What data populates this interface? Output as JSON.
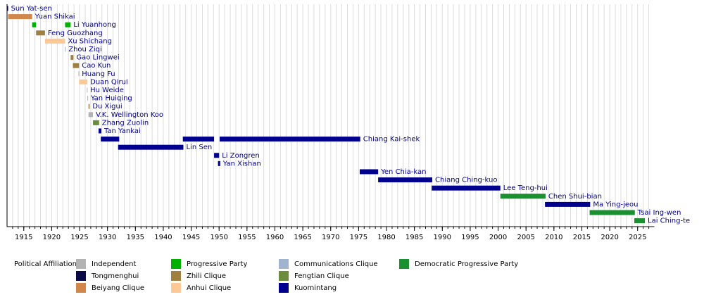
{
  "chart_data": {
    "type": "timeline",
    "xlim": [
      1912,
      2028
    ],
    "xticks": [
      1915,
      1920,
      1925,
      1930,
      1935,
      1940,
      1945,
      1950,
      1955,
      1960,
      1965,
      1970,
      1975,
      1980,
      1985,
      1990,
      1995,
      2000,
      2005,
      2010,
      2015,
      2020,
      2025
    ],
    "xminorticks": [
      1913,
      1914,
      1915,
      1916,
      1917,
      1918,
      1919,
      1920,
      1921,
      1922,
      1923,
      1924,
      1925,
      1926,
      1927,
      1928,
      1929,
      1930,
      1931,
      1932,
      1933,
      1934,
      1935,
      1936,
      1937,
      1938,
      1939,
      1940,
      1941,
      1942,
      1943,
      1944,
      1945,
      1946,
      1947,
      1948,
      1949,
      1950,
      1951,
      1952,
      1953,
      1954,
      1955,
      1956,
      1957,
      1958,
      1959,
      1960,
      1961,
      1962,
      1963,
      1964,
      1965,
      1966,
      1967,
      1968,
      1969,
      1970,
      1971,
      1972,
      1973,
      1974,
      1975,
      1976,
      1977,
      1978,
      1979,
      1980,
      1981,
      1982,
      1983,
      1984,
      1985,
      1986,
      1987,
      1988,
      1989,
      1990,
      1991,
      1992,
      1993,
      1994,
      1995,
      1996,
      1997,
      1998,
      1999,
      2000,
      2001,
      2002,
      2003,
      2004,
      2005,
      2006,
      2007,
      2008,
      2009,
      2010,
      2011,
      2012,
      2013,
      2014,
      2015,
      2016,
      2017,
      2018,
      2019,
      2020,
      2021,
      2022,
      2023,
      2024,
      2025,
      2026,
      2027
    ],
    "grid": true,
    "rows": [
      {
        "name": "Sun Yat-sen",
        "segments": [
          {
            "start": 1912.0,
            "end": 1912.2,
            "color": "#0a0a45"
          }
        ]
      },
      {
        "name": "Yuan Shikai",
        "segments": [
          {
            "start": 1912.2,
            "end": 1916.5,
            "color": "#d2874a"
          }
        ]
      },
      {
        "name": "Li Yuanhong",
        "segments": [
          {
            "start": 1916.5,
            "end": 1917.2,
            "color": "#00b000"
          },
          {
            "start": 1922.4,
            "end": 1923.4,
            "color": "#00b000"
          }
        ]
      },
      {
        "name": "Feng Guozhang",
        "segments": [
          {
            "start": 1917.2,
            "end": 1918.8,
            "color": "#a08040"
          }
        ]
      },
      {
        "name": "Xu Shichang",
        "segments": [
          {
            "start": 1918.8,
            "end": 1922.4,
            "color": "#fcc896"
          }
        ]
      },
      {
        "name": "Zhou Ziqi",
        "segments": [
          {
            "start": 1922.4,
            "end": 1922.5,
            "color": "#a0b4d0"
          }
        ]
      },
      {
        "name": "Gao Lingwei",
        "segments": [
          {
            "start": 1923.4,
            "end": 1923.9,
            "color": "#a08040"
          }
        ]
      },
      {
        "name": "Cao Kun",
        "segments": [
          {
            "start": 1923.8,
            "end": 1924.9,
            "color": "#a08040"
          }
        ]
      },
      {
        "name": "Huang Fu",
        "segments": [
          {
            "start": 1924.8,
            "end": 1924.9,
            "color": "#b3b3b3"
          }
        ]
      },
      {
        "name": "Duan Qirui",
        "segments": [
          {
            "start": 1924.9,
            "end": 1926.4,
            "color": "#fcc896"
          }
        ]
      },
      {
        "name": "Hu Weide",
        "segments": [
          {
            "start": 1926.3,
            "end": 1926.4,
            "color": "#b3b3b3"
          }
        ]
      },
      {
        "name": "Yan Huiqing",
        "segments": [
          {
            "start": 1926.4,
            "end": 1926.5,
            "color": "#b3b3b3"
          }
        ]
      },
      {
        "name": "Du Xigui",
        "segments": [
          {
            "start": 1926.6,
            "end": 1926.8,
            "color": "#a08040"
          }
        ]
      },
      {
        "name": "V.K. Wellington Koo",
        "segments": [
          {
            "start": 1926.6,
            "end": 1927.4,
            "color": "#b3b3b3"
          }
        ]
      },
      {
        "name": "Zhang Zuolin",
        "segments": [
          {
            "start": 1927.4,
            "end": 1928.5,
            "color": "#6a8c3c"
          }
        ]
      },
      {
        "name": "Tan Yankai",
        "segments": [
          {
            "start": 1928.4,
            "end": 1928.9,
            "color": "#000090"
          }
        ]
      },
      {
        "name": "Chiang Kai-shek",
        "segments": [
          {
            "start": 1928.8,
            "end": 1932.1,
            "color": "#000090"
          },
          {
            "start": 1943.5,
            "end": 1949.1,
            "color": "#000090"
          },
          {
            "start": 1950.1,
            "end": 1975.3,
            "color": "#000090"
          }
        ]
      },
      {
        "name": "Lin Sen",
        "segments": [
          {
            "start": 1931.9,
            "end": 1943.6,
            "color": "#000090"
          }
        ]
      },
      {
        "name": "Li Zongren",
        "segments": [
          {
            "start": 1949.1,
            "end": 1950.0,
            "color": "#000090"
          }
        ]
      },
      {
        "name": "Yan Xishan",
        "segments": [
          {
            "start": 1949.8,
            "end": 1950.2,
            "color": "#000090"
          }
        ]
      },
      {
        "name": "Yen Chia-kan",
        "segments": [
          {
            "start": 1975.2,
            "end": 1978.5,
            "color": "#000090"
          }
        ]
      },
      {
        "name": "Chiang Ching-kuo",
        "segments": [
          {
            "start": 1978.5,
            "end": 1988.2,
            "color": "#000090"
          }
        ]
      },
      {
        "name": "Lee Teng-hui",
        "segments": [
          {
            "start": 1988.1,
            "end": 2000.4,
            "color": "#000090"
          }
        ]
      },
      {
        "name": "Chen Shui-bian",
        "segments": [
          {
            "start": 2000.4,
            "end": 2008.5,
            "color": "#1a9030"
          }
        ]
      },
      {
        "name": "Ma Ying-jeou",
        "segments": [
          {
            "start": 2008.4,
            "end": 2016.5,
            "color": "#000090"
          }
        ]
      },
      {
        "name": "Tsai Ing-wen",
        "segments": [
          {
            "start": 2016.4,
            "end": 2024.5,
            "color": "#1a9030"
          }
        ]
      },
      {
        "name": "Lai Ching-te",
        "segments": [
          {
            "start": 2024.4,
            "end": 2026.3,
            "color": "#1a9030"
          }
        ]
      }
    ],
    "legend_title": "Political Affiliation:",
    "legend": [
      {
        "name": "Independent",
        "color": "#b3b3b3"
      },
      {
        "name": "Tongmenghui",
        "color": "#0a0a45"
      },
      {
        "name": "Beiyang Clique",
        "color": "#d2874a"
      },
      {
        "name": "Progressive Party",
        "color": "#00b000"
      },
      {
        "name": "Zhili Clique",
        "color": "#a08040"
      },
      {
        "name": "Anhui Clique",
        "color": "#fcc896"
      },
      {
        "name": "Communications Clique",
        "color": "#a0b4d0"
      },
      {
        "name": "Fengtian Clique",
        "color": "#6a8c3c"
      },
      {
        "name": "Kuomintang",
        "color": "#000090"
      },
      {
        "name": "Democratic Progressive Party",
        "color": "#1a9030"
      }
    ]
  }
}
